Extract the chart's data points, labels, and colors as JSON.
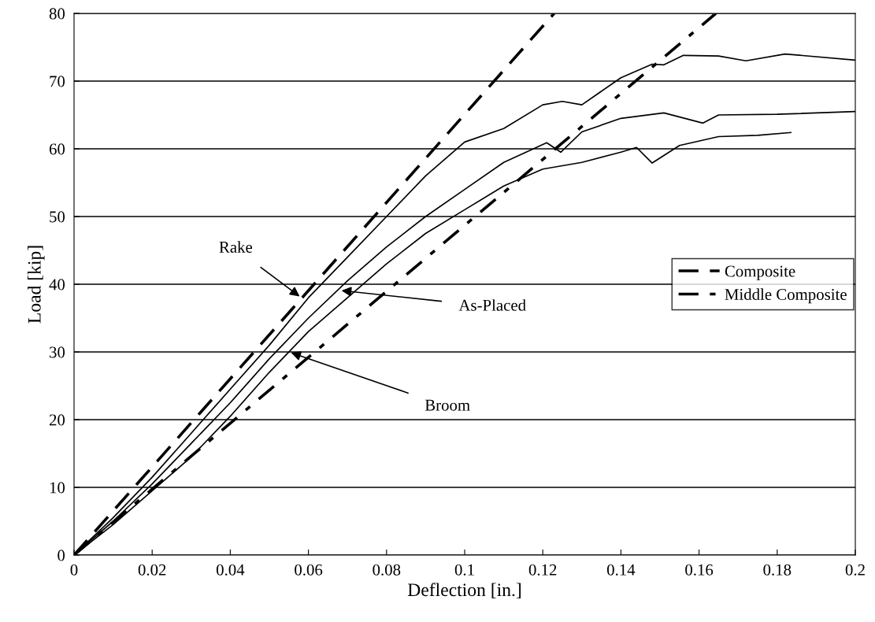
{
  "chart_data": {
    "type": "line",
    "xlabel": "Deflection [in.]",
    "ylabel": "Load [kip]",
    "xlim": [
      0,
      0.2
    ],
    "ylim": [
      0,
      80
    ],
    "xticks": [
      0,
      0.02,
      0.04,
      0.06,
      0.08,
      0.1,
      0.12,
      0.14,
      0.16,
      0.18,
      0.2
    ],
    "yticks": [
      0,
      10,
      20,
      30,
      40,
      50,
      60,
      70,
      80
    ],
    "grid": "y",
    "legend": "right",
    "marker": "none",
    "series": [
      {
        "name": "Composite",
        "color": "#000000",
        "line_style": "dashed",
        "x": [
          0,
          0.1229
        ],
        "values": [
          0,
          80
        ]
      },
      {
        "name": "Middle Composite",
        "color": "#000000",
        "line_style": "dashdot",
        "x": [
          0,
          0.1643
        ],
        "values": [
          0,
          80
        ]
      },
      {
        "color": "#000000",
        "line_style": "solid",
        "x": [
          0,
          0.01,
          0.02,
          0.03,
          0.04,
          0.05,
          0.06,
          0.07,
          0.08,
          0.09,
          0.1,
          0.11,
          0.12,
          0.125,
          0.13,
          0.14,
          0.148,
          0.151,
          0.156,
          0.165,
          0.172,
          0.182,
          0.2
        ],
        "values": [
          0,
          5.5,
          11.5,
          18,
          24.5,
          31,
          38,
          44,
          50,
          56,
          61,
          63,
          66.5,
          67,
          66.5,
          70.5,
          72.5,
          72.4,
          73.8,
          73.7,
          73.0,
          74.0,
          73.1
        ]
      },
      {
        "color": "#000000",
        "line_style": "solid",
        "x": [
          0,
          0.01,
          0.02,
          0.03,
          0.04,
          0.05,
          0.06,
          0.07,
          0.08,
          0.09,
          0.1,
          0.11,
          0.121,
          0.1246,
          0.13,
          0.14,
          0.151,
          0.161,
          0.165,
          0.18,
          0.2
        ],
        "values": [
          0,
          5,
          10.5,
          16.5,
          22.5,
          29,
          35,
          40.5,
          45.5,
          50,
          54,
          58,
          60.9,
          59.5,
          62.5,
          64.5,
          65.3,
          63.8,
          65,
          65.1,
          65.5
        ]
      },
      {
        "color": "#000000",
        "line_style": "solid",
        "x": [
          0,
          0.01,
          0.02,
          0.03,
          0.04,
          0.05,
          0.06,
          0.07,
          0.08,
          0.09,
          0.1,
          0.11,
          0.12,
          0.13,
          0.14,
          0.144,
          0.148,
          0.155,
          0.165,
          0.175,
          0.1835
        ],
        "values": [
          0,
          4.5,
          9.5,
          14.5,
          20.5,
          27,
          33,
          38,
          43,
          47.5,
          51,
          54.5,
          57,
          58,
          59.5,
          60.2,
          57.9,
          60.5,
          61.8,
          62,
          62.4
        ]
      }
    ],
    "annotations": [
      {
        "text": "Rake",
        "x": 0.0582,
        "y": 38.0
      },
      {
        "text": "As-Placed",
        "x": 0.0679,
        "y": 39.1
      },
      {
        "text": "Broom",
        "x": 0.055,
        "y": 30
      }
    ]
  }
}
